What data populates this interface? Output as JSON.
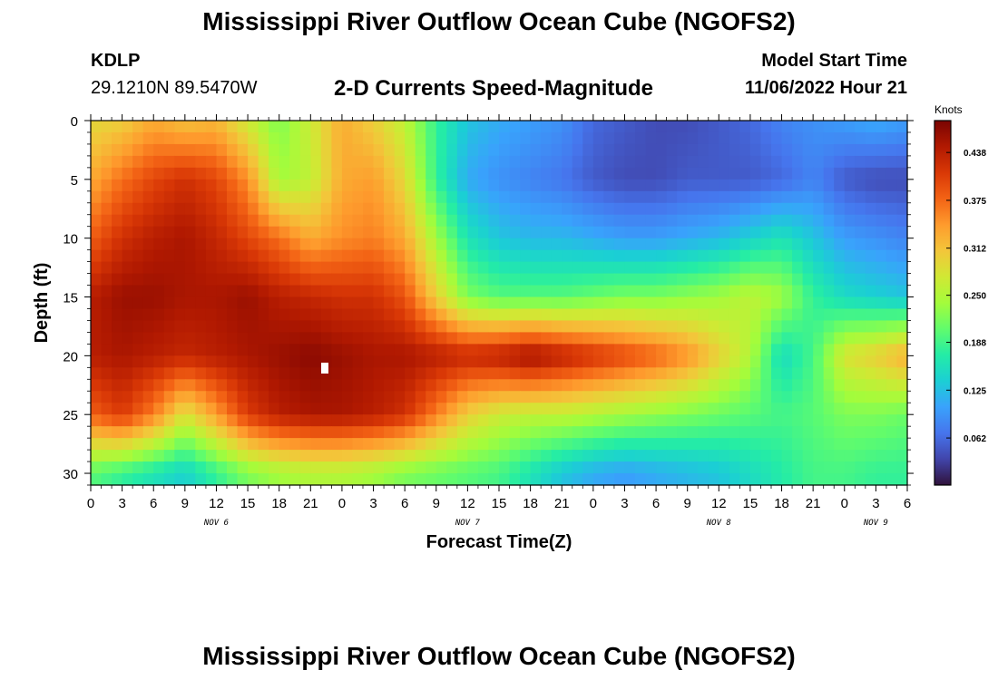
{
  "header": {
    "title": "Mississippi River Outflow Ocean Cube (NGOFS2)",
    "station": "KDLP",
    "coordinates": "29.1210N  89.5470W",
    "subtitle": "2-D Currents Speed-Magnitude",
    "model_start_label": "Model Start Time",
    "model_start_value": "11/06/2022 Hour 21"
  },
  "footer": {
    "title": "Mississippi River Outflow Ocean Cube (NGOFS2)"
  },
  "chart_data": {
    "type": "heatmap",
    "title": "2-D Currents Speed-Magnitude",
    "xlabel": "Forecast Time(Z)",
    "ylabel": "Depth (ft)",
    "x_tick_labels": [
      "0",
      "3",
      "6",
      "9",
      "12",
      "15",
      "18",
      "21",
      "0",
      "3",
      "6",
      "9",
      "12",
      "15",
      "18",
      "21",
      "0",
      "3",
      "6",
      "9",
      "12",
      "15",
      "18",
      "21",
      "0",
      "3",
      "6"
    ],
    "x_hours": [
      0,
      3,
      6,
      9,
      12,
      15,
      18,
      21,
      24,
      27,
      30,
      33,
      36,
      39,
      42,
      45,
      48,
      51,
      54,
      57,
      60,
      63,
      66,
      69,
      72,
      75,
      78
    ],
    "day_labels": [
      {
        "text": "NOV 6",
        "hour": 12
      },
      {
        "text": "NOV 7",
        "hour": 36
      },
      {
        "text": "NOV 8",
        "hour": 60
      },
      {
        "text": "NOV 9",
        "hour": 75
      }
    ],
    "x_range_hours": [
      0,
      78
    ],
    "y_ticks": [
      0,
      5,
      10,
      15,
      20,
      25,
      30
    ],
    "y_range_ft": [
      0,
      31
    ],
    "y_inverted": true,
    "colorbar": {
      "unit": "Knots",
      "min": 0.0,
      "max": 0.48,
      "tick_labels": [
        "0.438",
        "0.375",
        "0.312",
        "0.250",
        "0.188",
        "0.125",
        "0.062"
      ],
      "tick_values": [
        0.438,
        0.375,
        0.312,
        0.25,
        0.188,
        0.125,
        0.062
      ],
      "colors": [
        "#30123b",
        "#4145ab",
        "#4675ed",
        "#39a2fc",
        "#1bcfd4",
        "#24eca6",
        "#61fc6c",
        "#a4fc3b",
        "#d1e834",
        "#f3c63a",
        "#fe9b2d",
        "#f36315",
        "#d93806",
        "#b11901",
        "#7a0402"
      ]
    },
    "hours": [
      0,
      3,
      6,
      9,
      12,
      15,
      18,
      21,
      24,
      27,
      30,
      33,
      36,
      39,
      42,
      45,
      48,
      51,
      54,
      57,
      60,
      63,
      66,
      69,
      72,
      75,
      78
    ],
    "depths_ft": [
      0,
      5,
      10,
      15,
      20,
      25,
      30
    ],
    "speed_knots": [
      [
        0.29,
        0.3,
        0.33,
        0.31,
        0.32,
        0.27,
        0.22,
        0.27,
        0.33,
        0.3,
        0.26,
        0.18,
        0.13,
        0.11,
        0.1,
        0.09,
        0.06,
        0.05,
        0.04,
        0.04,
        0.05,
        0.06,
        0.08,
        0.09,
        0.1,
        0.11,
        0.1
      ],
      [
        0.33,
        0.37,
        0.4,
        0.42,
        0.4,
        0.35,
        0.24,
        0.26,
        0.33,
        0.34,
        0.29,
        0.18,
        0.11,
        0.09,
        0.08,
        0.07,
        0.05,
        0.04,
        0.04,
        0.05,
        0.05,
        0.05,
        0.06,
        0.08,
        0.05,
        0.04,
        0.04
      ],
      [
        0.38,
        0.42,
        0.44,
        0.45,
        0.43,
        0.4,
        0.37,
        0.33,
        0.35,
        0.36,
        0.33,
        0.24,
        0.16,
        0.13,
        0.12,
        0.12,
        0.11,
        0.1,
        0.1,
        0.11,
        0.12,
        0.14,
        0.16,
        0.13,
        0.1,
        0.09,
        0.08
      ],
      [
        0.44,
        0.46,
        0.46,
        0.45,
        0.45,
        0.46,
        0.44,
        0.43,
        0.42,
        0.42,
        0.39,
        0.3,
        0.22,
        0.2,
        0.2,
        0.2,
        0.21,
        0.22,
        0.22,
        0.23,
        0.24,
        0.26,
        0.24,
        0.18,
        0.15,
        0.14,
        0.13
      ],
      [
        0.44,
        0.45,
        0.44,
        0.43,
        0.44,
        0.45,
        0.46,
        0.47,
        0.46,
        0.45,
        0.45,
        0.44,
        0.43,
        0.44,
        0.46,
        0.44,
        0.42,
        0.4,
        0.38,
        0.35,
        0.3,
        0.25,
        0.15,
        0.19,
        0.28,
        0.3,
        0.33
      ],
      [
        0.38,
        0.41,
        0.36,
        0.28,
        0.34,
        0.41,
        0.44,
        0.45,
        0.45,
        0.44,
        0.42,
        0.36,
        0.3,
        0.27,
        0.26,
        0.26,
        0.25,
        0.24,
        0.23,
        0.22,
        0.21,
        0.2,
        0.19,
        0.2,
        0.22,
        0.22,
        0.21
      ],
      [
        0.2,
        0.18,
        0.16,
        0.14,
        0.18,
        0.22,
        0.24,
        0.25,
        0.25,
        0.24,
        0.22,
        0.21,
        0.2,
        0.19,
        0.16,
        0.13,
        0.11,
        0.1,
        0.11,
        0.12,
        0.13,
        0.15,
        0.17,
        0.19,
        0.19,
        0.18,
        0.18
      ]
    ]
  }
}
